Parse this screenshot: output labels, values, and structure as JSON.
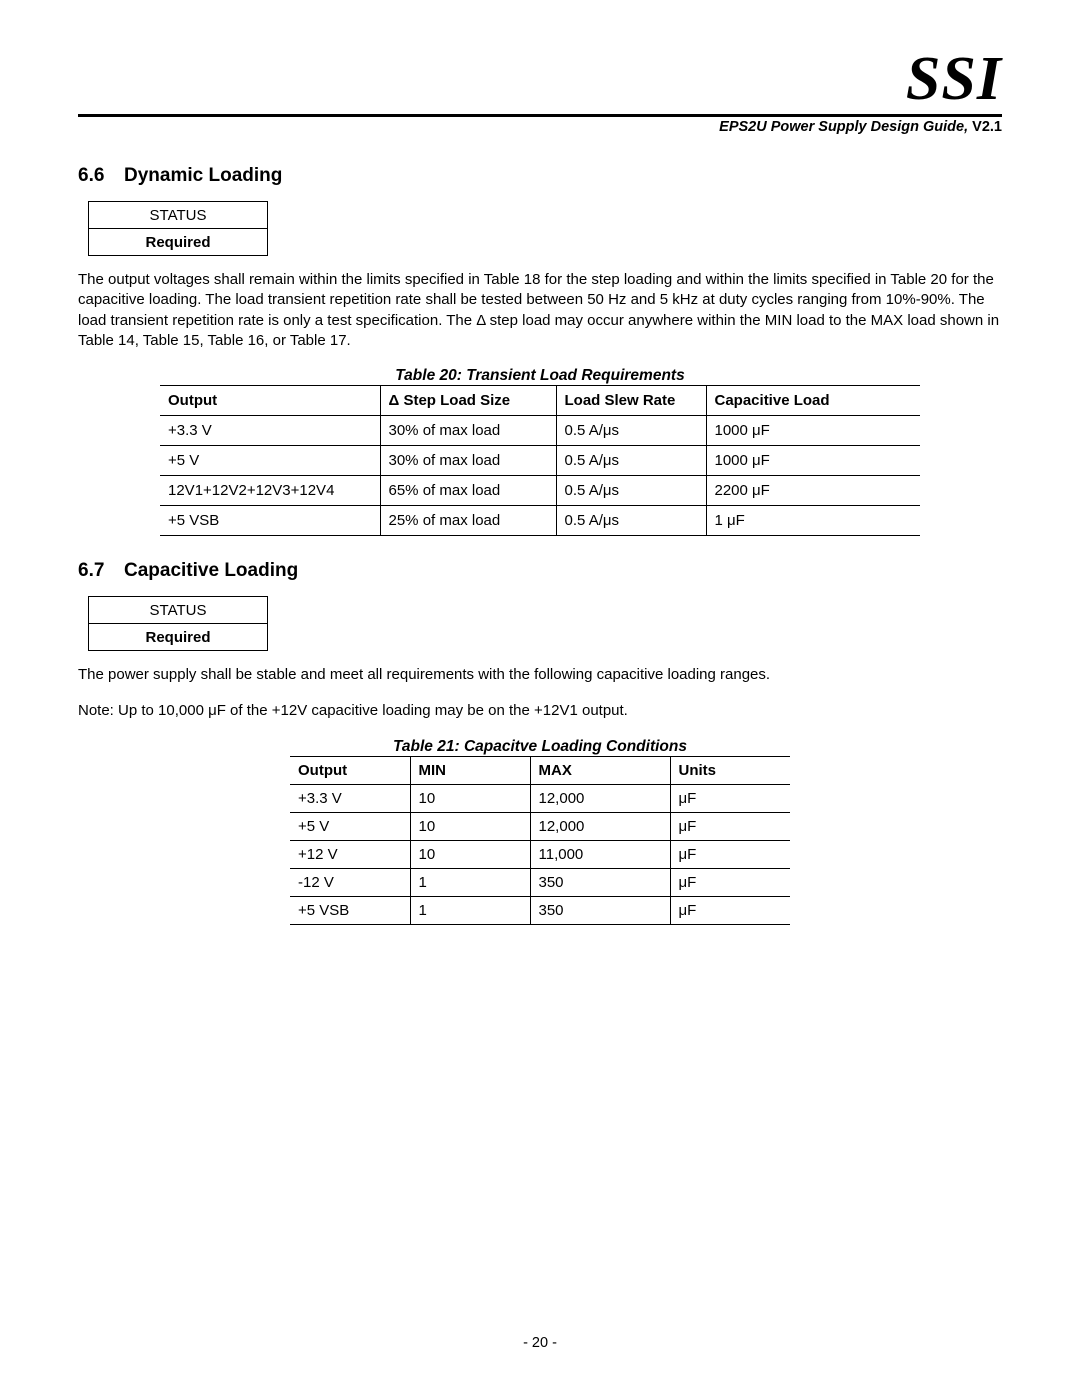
{
  "header": {
    "logo": "SSI",
    "doc_title_italic": "EPS2U Power Supply Design Guide,",
    "doc_version": " V2.1"
  },
  "section_66": {
    "number": "6.6",
    "title": "Dynamic Loading",
    "status_label": "STATUS",
    "status_value": "Required",
    "paragraph": "The output voltages shall remain within the limits specified in Table 18 for the step loading and within the limits specified in Table 20 for the capacitive loading.  The load transient repetition rate shall be tested between 50 Hz and 5 kHz at duty cycles ranging from 10%-90%.  The load transient repetition rate is only a test specification.  The Δ step load may occur anywhere within the MIN load to the MAX load shown in Table 14, Table 15, Table 16, or Table 17."
  },
  "table20": {
    "caption": "Table 20:  Transient Load Requirements",
    "headers": [
      "Output",
      "Δ Step Load Size",
      "Load Slew Rate",
      "Capacitive Load"
    ],
    "rows": [
      [
        "+3.3 V",
        "30% of max load",
        "0.5 A/μs",
        "1000 μF"
      ],
      [
        "+5 V",
        "30% of max load",
        "0.5 A/μs",
        "1000 μF"
      ],
      [
        "12V1+12V2+12V3+12V4",
        "65% of max load",
        "0.5 A/μs",
        "2200 μF"
      ],
      [
        "+5 VSB",
        "25% of max load",
        "0.5 A/μs",
        "1 μF"
      ]
    ]
  },
  "section_67": {
    "number": "6.7",
    "title": "Capacitive Loading",
    "status_label": "STATUS",
    "status_value": "Required",
    "paragraph1": "The power supply shall be stable and meet all requirements with the following capacitive loading ranges.",
    "paragraph2": "Note: Up to 10,000 μF of the +12V capacitive loading may be on the +12V1 output."
  },
  "table21": {
    "caption": "Table 21:  Capacitve Loading Conditions",
    "headers": [
      "Output",
      "MIN",
      "MAX",
      "Units"
    ],
    "rows": [
      [
        "+3.3 V",
        "10",
        "12,000",
        "μF"
      ],
      [
        "+5 V",
        "10",
        "12,000",
        "μF"
      ],
      [
        "+12 V",
        "10",
        "11,000",
        "μF"
      ],
      [
        "-12 V",
        "1",
        "350",
        "μF"
      ],
      [
        "+5 VSB",
        "1",
        "350",
        "μF"
      ]
    ]
  },
  "footer": {
    "page_number": "- 20 -"
  }
}
